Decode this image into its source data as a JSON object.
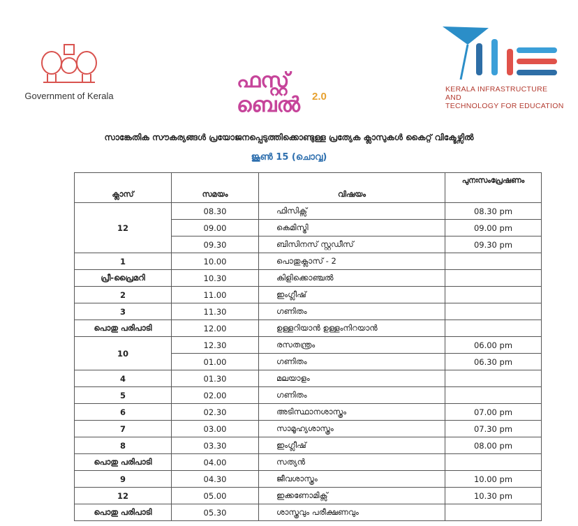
{
  "header": {
    "government_label": "Government of Kerala",
    "first_bell_logo": "ഫസ്റ്റ് ബെൽ",
    "first_bell_version": "2.0",
    "kite_line1": "KERALA INFRASTRUCTURE AND",
    "kite_line2": "TECHNOLOGY FOR EDUCATION"
  },
  "title": "സാങ്കേതിക സൗകര്യങ്ങൾ പ്രയോജനപ്പെടുത്തിക്കൊണ്ടുള്ള പ്രത്യേക ക്ലാസുകൾ കൈറ്റ് വിക്ടേഴ്സിൽ",
  "date": "ജൂൺ 15 (ചൊവ്വ)",
  "colors": {
    "date": "#2e6fae",
    "emblem": "#d9534f",
    "kite_text": "#b33a2f"
  },
  "table": {
    "headers": [
      "ക്ലാസ്",
      "സമയം",
      "വിഷയം",
      "പുനഃസംപ്രേഷണം"
    ],
    "rows": [
      {
        "class": "12",
        "rowspan": 3,
        "time": "08.30",
        "subject": "ഫിസിക്സ്",
        "repeat": "08.30 pm"
      },
      {
        "time": "09.00",
        "subject": "കെമിസ്ട്രി",
        "repeat": "09.00 pm"
      },
      {
        "time": "09.30",
        "subject": "ബിസിനസ് സ്റ്റഡീസ്",
        "repeat": "09.30 pm"
      },
      {
        "class": "1",
        "time": "10.00",
        "subject": "പൊതുക്ലാസ് - 2",
        "repeat": ""
      },
      {
        "class": "പ്രീ-പ്രൈമറി",
        "time": "10.30",
        "subject": "കിളിക്കൊഞ്ചൽ",
        "repeat": ""
      },
      {
        "class": "2",
        "time": "11.00",
        "subject": "ഇംഗ്ലീഷ്",
        "repeat": ""
      },
      {
        "class": "3",
        "time": "11.30",
        "subject": "ഗണിതം",
        "repeat": ""
      },
      {
        "class": "പൊതു പരിപാടി",
        "time": "12.00",
        "subject": "ഉള്ളറിയാൻ ഉള്ളംനിറയാൻ",
        "repeat": ""
      },
      {
        "class": "10",
        "rowspan": 2,
        "time": "12.30",
        "subject": "രസതന്ത്രം",
        "repeat": "06.00 pm"
      },
      {
        "time": "01.00",
        "subject": "ഗണിതം",
        "repeat": "06.30 pm"
      },
      {
        "class": "4",
        "time": "01.30",
        "subject": "മലയാളം",
        "repeat": ""
      },
      {
        "class": "5",
        "time": "02.00",
        "subject": "ഗണിതം",
        "repeat": ""
      },
      {
        "class": "6",
        "time": "02.30",
        "subject": "അടിസ്ഥാനശാസ്ത്രം",
        "repeat": "07.00 pm"
      },
      {
        "class": "7",
        "time": "03.00",
        "subject": "സാമൂഹ്യശാസ്ത്രം",
        "repeat": "07.30 pm"
      },
      {
        "class": "8",
        "time": "03.30",
        "subject": "ഇംഗ്ലീഷ്",
        "repeat": "08.00 pm"
      },
      {
        "class": "പൊതു പരിപാടി",
        "time": "04.00",
        "subject": "സത്യൻ",
        "repeat": ""
      },
      {
        "class": "9",
        "time": "04.30",
        "subject": "ജീവശാസ്ത്രം",
        "repeat": "10.00 pm"
      },
      {
        "class": "12",
        "time": "05.00",
        "subject": "ഇക്കണോമിക്സ്",
        "repeat": "10.30 pm"
      },
      {
        "class": "പൊതു പരിപാടി",
        "time": "05.30",
        "subject": "ശാസ്ത്രവും പരീക്ഷണവും",
        "repeat": ""
      }
    ]
  }
}
